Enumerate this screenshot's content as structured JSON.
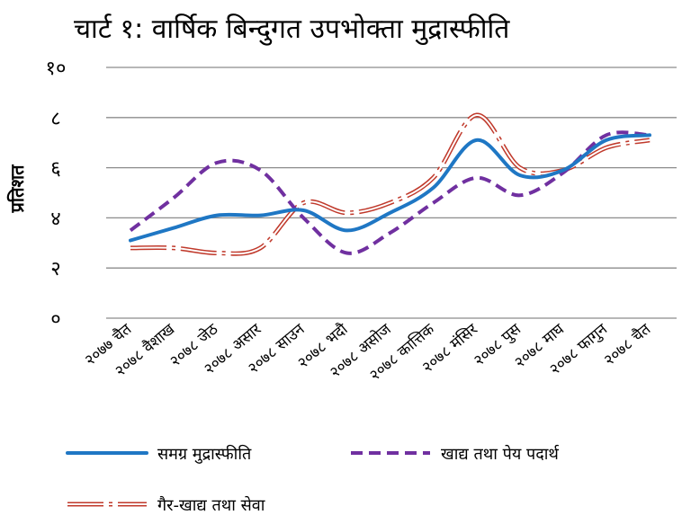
{
  "chart_data": {
    "type": "line",
    "title": "चार्ट १: वार्षिक बिन्दुगत उपभोक्ता मुद्रास्फीति",
    "ylabel": "प्रतिशत",
    "xlabel": "",
    "ylim": [
      0,
      10
    ],
    "yticks": [
      0,
      2,
      4,
      6,
      8,
      10
    ],
    "ytick_labels": [
      "०",
      "२",
      "४",
      "६",
      "८",
      "१०"
    ],
    "grid": true,
    "legend_position": "bottom",
    "categories": [
      "२०७७ चैत",
      "२०७८ वैशाख",
      "२०७८ जेठ",
      "२०७८ असार",
      "२०७८ साउन",
      "२०७८ भदौ",
      "२०७८ असोज",
      "२०७८ कात्तिक",
      "२०७८ मंसिर",
      "२०७८ पुस",
      "२०७८ माघ",
      "२०७८ फागुन",
      "२०७८ चैत"
    ],
    "series": [
      {
        "name": "समग्र मुद्रास्फीति",
        "style": "solid",
        "color": "#1f77c4",
        "values": [
          3.1,
          3.6,
          4.1,
          4.1,
          4.3,
          3.5,
          4.2,
          5.2,
          7.1,
          5.7,
          5.9,
          7.1,
          7.3
        ]
      },
      {
        "name": "खाद्य तथा पेय पदार्थ",
        "style": "dashed",
        "color": "#7030a0",
        "values": [
          3.5,
          4.8,
          6.2,
          5.9,
          4.0,
          2.6,
          3.4,
          4.6,
          5.6,
          4.9,
          5.8,
          7.3,
          7.3
        ]
      },
      {
        "name": "गैर-खाद्य तथा सेवा",
        "style": "double-dashed",
        "color": "#c0392b",
        "values": [
          2.8,
          2.8,
          2.6,
          2.8,
          4.6,
          4.2,
          4.6,
          5.6,
          8.1,
          6.0,
          5.9,
          6.8,
          7.1
        ]
      }
    ]
  }
}
